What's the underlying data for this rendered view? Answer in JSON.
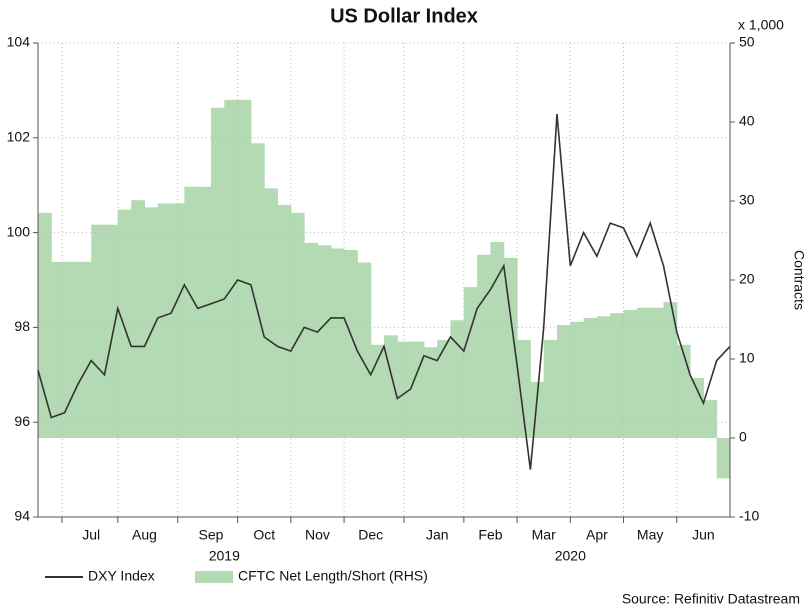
{
  "chart_data": {
    "type": "line",
    "title": "US Dollar Index",
    "categories": [
      null,
      null,
      null,
      null,
      "Jul",
      null,
      null,
      null,
      "Aug",
      null,
      null,
      null,
      null,
      "Sep",
      null,
      null,
      null,
      "Oct",
      null,
      null,
      null,
      "Nov",
      null,
      null,
      null,
      "Dec",
      null,
      null,
      null,
      null,
      "Jan",
      null,
      null,
      null,
      "Feb",
      null,
      null,
      null,
      "Mar",
      null,
      null,
      null,
      "Apr",
      null,
      null,
      null,
      "May",
      null,
      null,
      null,
      "Jun",
      null,
      null
    ],
    "year_labels": [
      "2019",
      "2020"
    ],
    "series": [
      {
        "name": "DXY Index",
        "color": "#333333",
        "values": [
          97.1,
          96.1,
          96.2,
          96.8,
          97.3,
          97.0,
          98.4,
          97.6,
          97.6,
          98.2,
          98.3,
          98.9,
          98.4,
          98.5,
          98.6,
          99.0,
          98.9,
          97.8,
          97.6,
          97.5,
          98.0,
          97.9,
          98.2,
          98.2,
          97.5,
          97.0,
          97.6,
          96.5,
          96.7,
          97.4,
          97.3,
          97.8,
          97.5,
          98.4,
          98.8,
          99.3,
          97.2,
          95.0,
          98.0,
          102.5,
          99.3,
          100.0,
          99.5,
          100.2,
          100.1,
          99.5,
          100.2,
          99.3,
          97.9,
          97.0,
          96.4,
          97.3,
          97.6
        ]
      },
      {
        "name": "CFTC Net Length/Short (RHS)",
        "color": "#b3dab3",
        "axis": "y2",
        "values": [
          28.5,
          22.3,
          22.3,
          22.3,
          27,
          27,
          28.9,
          30.1,
          29.2,
          29.7,
          29.7,
          31.8,
          31.8,
          41.8,
          42.8,
          42.8,
          37.3,
          31.6,
          29.5,
          28.5,
          24.7,
          24.4,
          24,
          23.8,
          22.2,
          11.8,
          13,
          12.2,
          12.2,
          11.5,
          12.4,
          14.9,
          19.1,
          23.2,
          24.8,
          22.8,
          12.4,
          7.1,
          12.4,
          14.3,
          14.7,
          15.2,
          15.4,
          15.8,
          16.2,
          16.5,
          16.5,
          17.2,
          11.8,
          7.6,
          4.8,
          -5.1,
          null
        ]
      }
    ],
    "ylim": [
      94,
      104
    ],
    "yticks": [
      94,
      96,
      98,
      100,
      102,
      104
    ],
    "y2lim": [
      -10,
      50
    ],
    "y2ticks": [
      -10,
      0,
      10,
      20,
      30,
      40,
      50
    ],
    "y2_unit": "x 1,000",
    "y2_label": "Contracts",
    "grid": true,
    "legend": "bottom-left",
    "source": "Source: Refinitiv Datastream"
  }
}
